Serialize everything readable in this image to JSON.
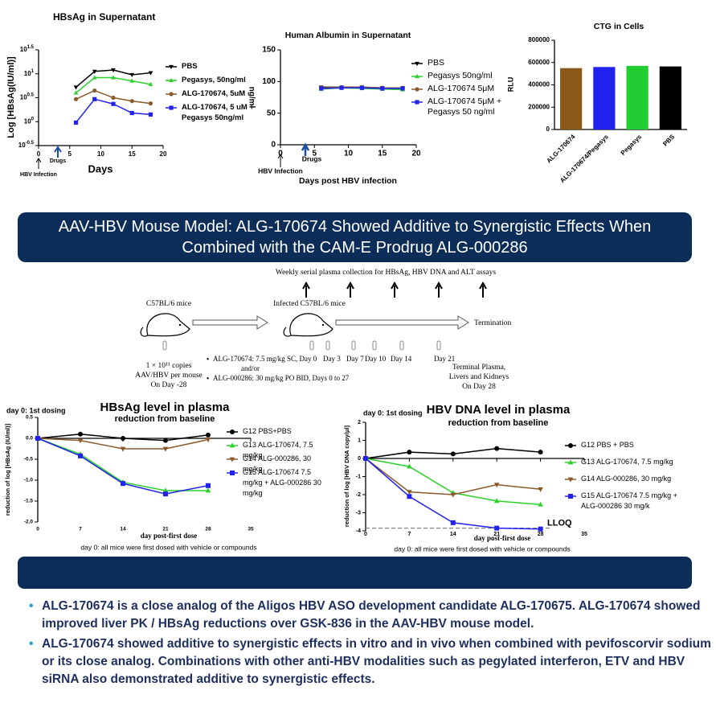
{
  "chart_data": [
    {
      "type": "line",
      "title": "HBsAg in Supernatant",
      "x_label": "Days",
      "y_label": "Log [HBsAg(IU/ml)]",
      "x": [
        6,
        9,
        12,
        15,
        18
      ],
      "xlim": [
        0,
        20
      ],
      "xticks": [
        0,
        5,
        10,
        15,
        20
      ],
      "ylim": [
        -0.5,
        1.5
      ],
      "yticks": [
        {
          "value": -0.5,
          "label": "10^-0.5"
        },
        {
          "value": 0,
          "label": "10^0"
        },
        {
          "value": 0.5,
          "label": "10^0.5"
        },
        {
          "value": 1,
          "label": "10^1"
        },
        {
          "value": 1.5,
          "label": "10^1.5"
        }
      ],
      "annotations": [
        "HBV Infection",
        "Drugs"
      ],
      "series": [
        {
          "name": "PBS",
          "color": "#000000",
          "marker": "triangle-down",
          "values": [
            0.72,
            1.05,
            1.08,
            0.98,
            1.02
          ]
        },
        {
          "name": "Pegasys, 50ng/ml",
          "color": "#2bd12b",
          "marker": "triangle-up",
          "values": [
            0.6,
            0.92,
            0.92,
            0.85,
            0.78
          ]
        },
        {
          "name": "ALG-170674, 5uM",
          "color": "#8b5a2b",
          "marker": "circle",
          "values": [
            0.47,
            0.65,
            0.5,
            0.43,
            0.38
          ]
        },
        {
          "name": "ALG-170674, 5 uM + Pegasys 50ng/ml",
          "color": "#2222ee",
          "marker": "square",
          "values": [
            -0.02,
            0.47,
            0.37,
            0.18,
            0.15
          ]
        }
      ]
    },
    {
      "type": "line",
      "title": "Human Albumin in Supernatant",
      "x_label": "Days post HBV infection",
      "y_label": "ng/ml",
      "x": [
        6,
        9,
        12,
        15,
        18
      ],
      "xlim": [
        0,
        20
      ],
      "xticks": [
        0,
        5,
        10,
        15,
        20
      ],
      "ylim": [
        0,
        150
      ],
      "yticks": [
        0,
        50,
        100,
        150
      ],
      "annotations": [
        "HBV Infection",
        "Drugs"
      ],
      "series": [
        {
          "name": "PBS",
          "color": "#000000",
          "marker": "triangle-down",
          "values": [
            91,
            91,
            91,
            90,
            90
          ]
        },
        {
          "name": "Pegasys 50ng/ml",
          "color": "#2bd12b",
          "marker": "triangle-up",
          "values": [
            88,
            90,
            89,
            88,
            87
          ]
        },
        {
          "name": "ALG-170674 5μM",
          "color": "#8b5a2b",
          "marker": "circle",
          "values": [
            90,
            91,
            91,
            90,
            90
          ]
        },
        {
          "name": "ALG-170674 5μM + Pegasys 50 ng/ml",
          "color": "#2222ee",
          "marker": "square",
          "values": [
            89,
            90,
            90,
            89,
            89
          ]
        }
      ]
    },
    {
      "type": "bar",
      "title": "CTG in Cells",
      "y_label": "RLU",
      "categories": [
        "ALG-170674",
        "ALG-170674/Pegasys",
        "Pegasys",
        "PBS"
      ],
      "values": [
        550000,
        560000,
        570000,
        565000
      ],
      "colors": [
        "#8b5a1a",
        "#2222ee",
        "#22cc33",
        "#000000"
      ],
      "ylim": [
        0,
        800000
      ],
      "yticks": [
        0,
        200000,
        400000,
        600000,
        800000
      ]
    },
    {
      "type": "line",
      "title": "HBsAg level in plasma",
      "subtitle": "reduction from baseline",
      "annotation": "day 0: 1st dosing",
      "x_label": "day post-first dose",
      "y_label": "reduction of log [HBsAg (IU/ml)]",
      "note": "day 0: all mice were first dosed with vehicle or compounds",
      "x": [
        0,
        7,
        14,
        21,
        28
      ],
      "xlim": [
        0,
        35
      ],
      "xticks": [
        0,
        7,
        14,
        21,
        28,
        35
      ],
      "ylim": [
        -2,
        0.5
      ],
      "yticks": [
        {
          "value": -2,
          "label": "-2.0"
        },
        {
          "value": -1.5,
          "label": "-1.5"
        },
        {
          "value": -1,
          "label": "-1.0"
        },
        {
          "value": -0.5,
          "label": "-0.5"
        },
        {
          "value": 0,
          "label": "0.0"
        },
        {
          "value": 0.5,
          "label": "0.5"
        }
      ],
      "series": [
        {
          "name": "G12 PBS+PBS",
          "color": "#000000",
          "marker": "circle",
          "values": [
            0,
            0.1,
            0,
            -0.05,
            0.08
          ]
        },
        {
          "name": "G13 ALG-170674, 7.5 mg/kg",
          "color": "#2bd12b",
          "marker": "triangle-up",
          "values": [
            0,
            -0.38,
            -1.05,
            -1.25,
            -1.25
          ]
        },
        {
          "name": "G14 ALG-000286, 30 mg/kg",
          "color": "#8b5a2b",
          "marker": "triangle-down",
          "values": [
            0,
            -0.05,
            -0.25,
            -0.25,
            -0.03
          ]
        },
        {
          "name": "G15 ALG-170674 7.5 mg/kg + ALG-000286 30 mg/kg",
          "color": "#2222ee",
          "marker": "square",
          "values": [
            0,
            -0.42,
            -1.08,
            -1.33,
            -1.13
          ]
        }
      ]
    },
    {
      "type": "line",
      "title": "HBV DNA level in plasma",
      "subtitle": "reduction from baseline",
      "annotation": "day 0: 1st dosing",
      "x_label": "day post-first dose",
      "y_label": "reduction of log [HBV DNA copy/μl]",
      "note": "day 0: all mice were first dosed with vehicle or compounds",
      "x": [
        0,
        7,
        14,
        21,
        28
      ],
      "xlim": [
        0,
        35
      ],
      "xticks": [
        0,
        7,
        14,
        21,
        28,
        35
      ],
      "ylim": [
        -4,
        2
      ],
      "yticks": [
        -4,
        -3,
        -2,
        -1,
        0,
        1,
        2
      ],
      "reference_line": {
        "value": -3.85,
        "label": "LLOQ"
      },
      "series": [
        {
          "name": "G12 PBS + PBS",
          "color": "#000000",
          "marker": "circle",
          "values": [
            0,
            0.35,
            0.25,
            0.55,
            0.35
          ]
        },
        {
          "name": "G13 ALG-170674, 7.5 mg/kg",
          "color": "#2bd12b",
          "marker": "triangle-up",
          "values": [
            0,
            -0.45,
            -1.9,
            -2.35,
            -2.55
          ]
        },
        {
          "name": "G14 ALG-000286, 30 mg/kg",
          "color": "#8b5a2b",
          "marker": "triangle-down",
          "values": [
            0,
            -1.85,
            -2.0,
            -1.45,
            -1.7
          ]
        },
        {
          "name": "G15 ALG-170674 7.5 mg/kg + ALG-000286 30 mg/k",
          "color": "#2222ee",
          "marker": "square",
          "values": [
            0,
            -2.1,
            -3.55,
            -3.85,
            -3.9
          ]
        }
      ]
    }
  ],
  "banner": {
    "title": "AAV-HBV Mouse Model: ALG-170674 Showed Additive to Synergistic Effects When Combined with the CAM-E Prodrug ALG-000286"
  },
  "diagram": {
    "collection": "Weekly serial plasma collection for HBsAg, HBV DNA and ALT assays",
    "mice": "C57BL/6 mice",
    "infected": "Infected C57BL/6 mice",
    "termination": "Termination",
    "dose": [
      "1 × 10¹¹ copies",
      "AAV/HBV per mouse",
      "On Day -28"
    ],
    "treatments": [
      "ALG-170674: 7.5 mg/kg SC, Day 0",
      "and/or",
      "ALG-000286: 30 mg/kg PO BID, Days 0 to 27"
    ],
    "days": [
      "Day 3",
      "Day 7",
      "Day 10",
      "Day 14",
      "Day 21"
    ],
    "terminal": [
      "Terminal Plasma,",
      "Livers and Kidneys",
      "On Day 28"
    ]
  },
  "bullets": [
    "ALG-170674 is a close analog of the Aligos HBV ASO development candidate ALG-170675. ALG-170674 showed improved liver PK / HBsAg reductions over GSK-836 in the AAV-HBV mouse model.",
    "ALG-170674 showed additive to synergistic effects in vitro and in vivo when combined with pevifoscorvir sodium or its close analog.  Combinations with other anti-HBV modalities such as pegylated interferon, ETV and HBV siRNA also demonstrated additive to synergistic effects."
  ]
}
